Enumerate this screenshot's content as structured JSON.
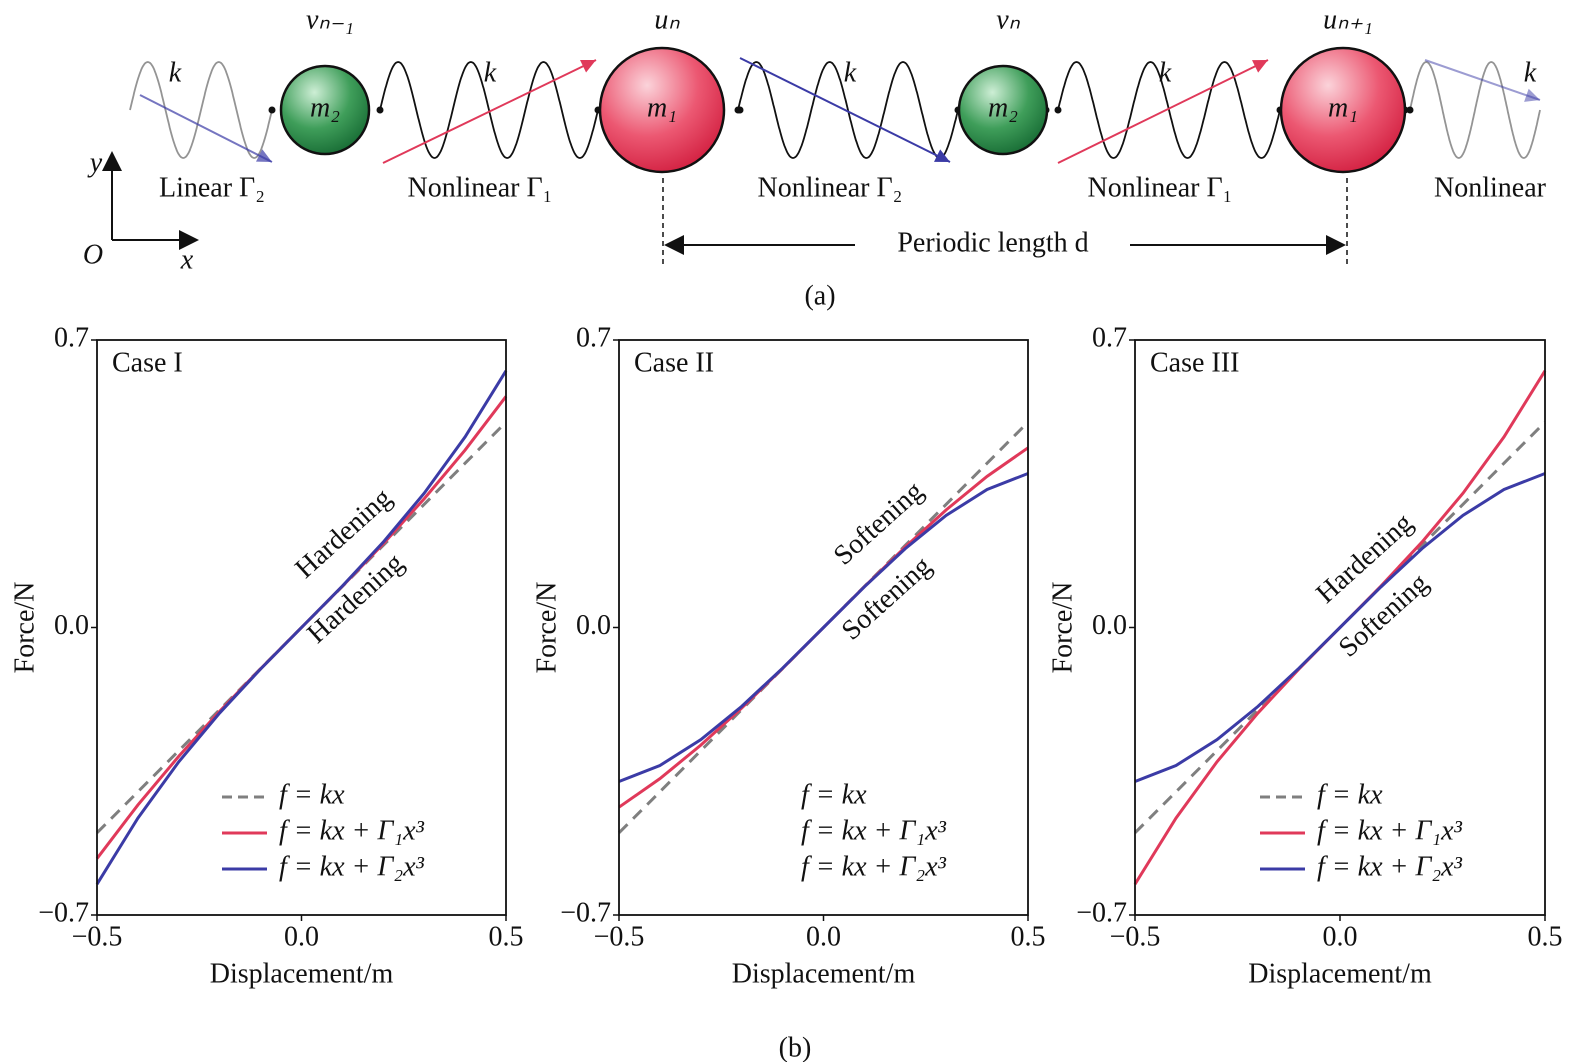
{
  "diagram": {
    "node_labels": [
      "vₙ₋₁",
      "uₙ",
      "vₙ",
      "uₙ₊₁"
    ],
    "masses": [
      "m₂",
      "m₁",
      "m₂",
      "m₁"
    ],
    "spring_labels": [
      "k",
      "k",
      "k",
      "k",
      "k"
    ],
    "nonlinearity_labels": [
      "Linear Γ₂",
      "Nonlinear Γ₁",
      "Nonlinear Γ₂",
      "Nonlinear Γ₁",
      "Nonlinear"
    ],
    "axes": {
      "y": "y",
      "origin": "O",
      "x": "x"
    },
    "period_label": "Periodic length d",
    "caption": "(a)"
  },
  "plots_caption": "(b)",
  "chart_data": [
    {
      "type": "line",
      "title": "Case I",
      "x_label": "Displacement/m",
      "y_label": "Force/N",
      "x": [
        -0.5,
        -0.4,
        -0.3,
        -0.2,
        -0.1,
        0,
        0.1,
        0.2,
        0.3,
        0.4,
        0.5
      ],
      "series": [
        {
          "name": "f = kx",
          "color": "#7f7f7f",
          "dash": true,
          "values": [
            -0.5,
            -0.4,
            -0.3,
            -0.2,
            -0.1,
            0,
            0.1,
            0.2,
            0.3,
            0.4,
            0.5
          ]
        },
        {
          "name": "f = kx + Γ₁x³",
          "color": "#e0395a",
          "dash": false,
          "values": [
            -0.5625,
            -0.432,
            -0.3135,
            -0.204,
            -0.1005,
            0,
            0.1005,
            0.204,
            0.3135,
            0.432,
            0.5625
          ]
        },
        {
          "name": "f = kx + Γ₂x³",
          "color": "#3b3ba6",
          "dash": false,
          "values": [
            -0.625,
            -0.464,
            -0.327,
            -0.208,
            -0.101,
            0,
            0.101,
            0.208,
            0.327,
            0.464,
            0.625
          ]
        }
      ],
      "xlim": [
        -0.5,
        0.5
      ],
      "ylim": [
        -0.7,
        0.7
      ],
      "xticks": [
        {
          "value": -0.5,
          "label": "−0.5"
        },
        {
          "value": 0,
          "label": "0.0"
        },
        0.5
      ],
      "yticks": [
        {
          "value": -0.7,
          "label": "−0.7"
        },
        {
          "value": 0,
          "label": "0.0"
        },
        0.7
      ],
      "annotations": [
        {
          "text": "Hardening",
          "color": "#e0395a"
        },
        {
          "text": "Hardening",
          "color": "#3b3ba6"
        }
      ],
      "legend_handles": true
    },
    {
      "type": "line",
      "title": "Case II",
      "x_label": "Displacement/m",
      "y_label": "Force/N",
      "x": [
        -0.5,
        -0.4,
        -0.3,
        -0.2,
        -0.1,
        0,
        0.1,
        0.2,
        0.3,
        0.4,
        0.5
      ],
      "series": [
        {
          "name": "f = kx",
          "color": "#7f7f7f",
          "dash": true,
          "values": [
            -0.5,
            -0.4,
            -0.3,
            -0.2,
            -0.1,
            0,
            0.1,
            0.2,
            0.3,
            0.4,
            0.5
          ]
        },
        {
          "name": "f = kx + Γ₁x³",
          "color": "#e0395a",
          "dash": false,
          "values": [
            -0.4375,
            -0.368,
            -0.2865,
            -0.196,
            -0.0995,
            0,
            0.0995,
            0.196,
            0.2865,
            0.368,
            0.4375
          ]
        },
        {
          "name": "f = kx + Γ₂x³",
          "color": "#3b3ba6",
          "dash": false,
          "values": [
            -0.375,
            -0.336,
            -0.273,
            -0.192,
            -0.099,
            0,
            0.099,
            0.192,
            0.273,
            0.336,
            0.375
          ]
        }
      ],
      "xlim": [
        -0.5,
        0.5
      ],
      "ylim": [
        -0.7,
        0.7
      ],
      "xticks": [
        {
          "value": -0.5,
          "label": "−0.5"
        },
        {
          "value": 0,
          "label": "0.0"
        },
        0.5
      ],
      "yticks": [
        {
          "value": -0.7,
          "label": "−0.7"
        },
        {
          "value": 0,
          "label": "0.0"
        },
        0.7
      ],
      "annotations": [
        {
          "text": "Softening",
          "color": "#e0395a"
        },
        {
          "text": "Softening",
          "color": "#3b3ba6"
        }
      ],
      "legend_handles": false
    },
    {
      "type": "line",
      "title": "Case III",
      "x_label": "Displacement/m",
      "y_label": "Force/N",
      "x": [
        -0.5,
        -0.4,
        -0.3,
        -0.2,
        -0.1,
        0,
        0.1,
        0.2,
        0.3,
        0.4,
        0.5
      ],
      "series": [
        {
          "name": "f = kx",
          "color": "#7f7f7f",
          "dash": true,
          "values": [
            -0.5,
            -0.4,
            -0.3,
            -0.2,
            -0.1,
            0,
            0.1,
            0.2,
            0.3,
            0.4,
            0.5
          ]
        },
        {
          "name": "f = kx + Γ₁x³",
          "color": "#e0395a",
          "dash": false,
          "values": [
            -0.625,
            -0.464,
            -0.327,
            -0.208,
            -0.101,
            0,
            0.101,
            0.208,
            0.327,
            0.464,
            0.625
          ]
        },
        {
          "name": "f = kx + Γ₂x³",
          "color": "#3b3ba6",
          "dash": false,
          "values": [
            -0.375,
            -0.336,
            -0.273,
            -0.192,
            -0.099,
            0,
            0.099,
            0.192,
            0.273,
            0.336,
            0.375
          ]
        }
      ],
      "xlim": [
        -0.5,
        0.5
      ],
      "ylim": [
        -0.7,
        0.7
      ],
      "xticks": [
        {
          "value": -0.5,
          "label": "−0.5"
        },
        {
          "value": 0,
          "label": "0.0"
        },
        0.5
      ],
      "yticks": [
        {
          "value": -0.7,
          "label": "−0.7"
        },
        {
          "value": 0,
          "label": "0.0"
        },
        0.7
      ],
      "annotations": [
        {
          "text": "Hardening",
          "color": "#e0395a"
        },
        {
          "text": "Softening",
          "color": "#3b3ba6"
        }
      ],
      "legend_handles": true
    }
  ]
}
